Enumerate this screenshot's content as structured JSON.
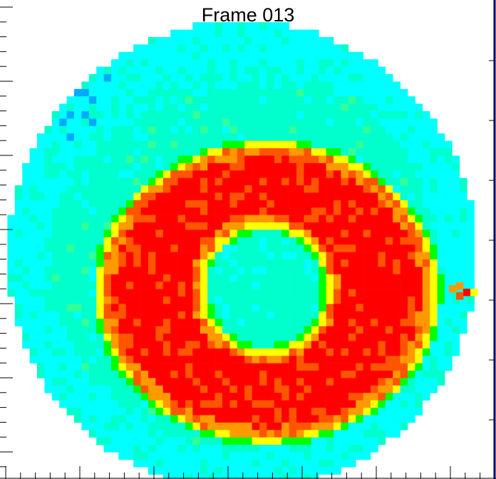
{
  "title": "Frame 013",
  "colors": {
    "background": "#ffffff",
    "outer_cyan": "#00ffff",
    "outer_blue": "#00aaff",
    "aqua_green": "#00ffcc",
    "green": "#00ff00",
    "yellow": "#ffff00",
    "orange": "#ff9900",
    "orange_red": "#ff5500",
    "red": "#ff0000",
    "axis": "#000000",
    "right_edge": "#000066"
  },
  "icons": [
    "heatmap-image"
  ]
}
